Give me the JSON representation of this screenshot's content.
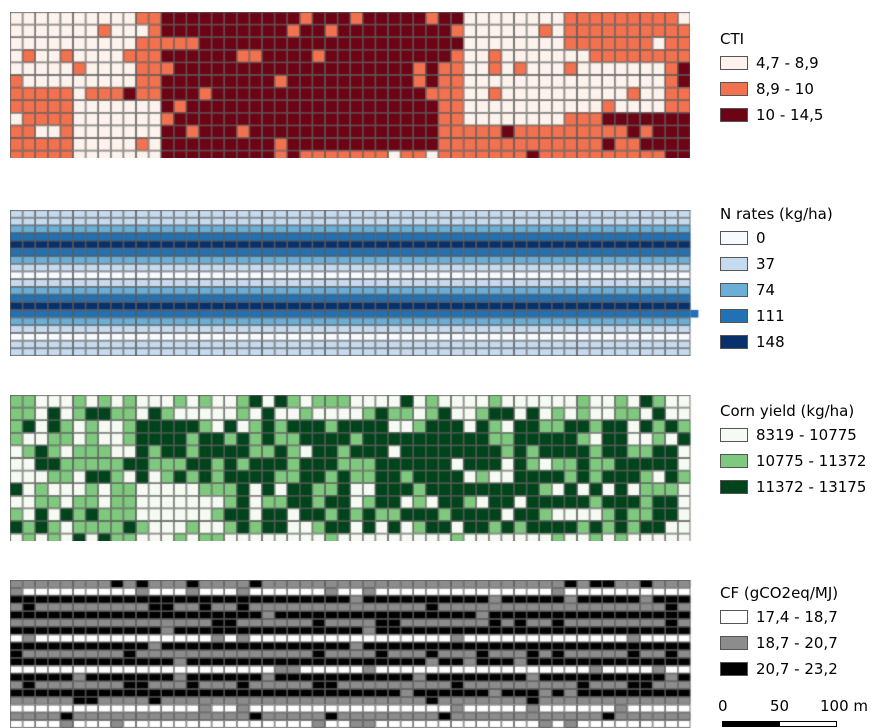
{
  "panels": [
    {
      "id": "cti",
      "legend_title": "CTI",
      "classes": [
        {
          "label": "4,7 - 8,9",
          "color": "#fdf2ec"
        },
        {
          "label": "8,9 - 10",
          "color": "#f2714f"
        },
        {
          "label": "10 - 14,5",
          "color": "#6c0415"
        }
      ],
      "pattern": "cti",
      "grid": {
        "cols": 54,
        "rows": 12
      }
    },
    {
      "id": "nrates",
      "legend_title": "N rates (kg/ha)",
      "classes": [
        {
          "label": "0",
          "color": "#f7fbff"
        },
        {
          "label": "37",
          "color": "#c6dbef"
        },
        {
          "label": "74",
          "color": "#6baed6"
        },
        {
          "label": "111",
          "color": "#2171b5"
        },
        {
          "label": "148",
          "color": "#08306b"
        }
      ],
      "row_classes": [
        1,
        1,
        2,
        3,
        4,
        3,
        2,
        1,
        0,
        1,
        2,
        3,
        4,
        3,
        2,
        1,
        0,
        1,
        1
      ],
      "pattern": "rows",
      "grid": {
        "cols": 54,
        "rows": 12
      }
    },
    {
      "id": "yield",
      "legend_title": "Corn yield (kg/ha)",
      "classes": [
        {
          "label": "8319 - 10775",
          "color": "#f5fbf2"
        },
        {
          "label": "10775 - 11372",
          "color": "#7fc97f"
        },
        {
          "label": "11372 - 13175",
          "color": "#00441b"
        }
      ],
      "pattern": "yield",
      "grid": {
        "cols": 54,
        "rows": 12
      }
    },
    {
      "id": "cf",
      "legend_title": "CF (gCO2eq/MJ)",
      "classes": [
        {
          "label": "17,4 - 18,7",
          "color": "#ffffff"
        },
        {
          "label": "18,7 - 20,7",
          "color": "#8c8c8c"
        },
        {
          "label": "20,7 - 23,2",
          "color": "#000000"
        }
      ],
      "row_classes": [
        1,
        0,
        2,
        1,
        2,
        1,
        2,
        0,
        2,
        1,
        2,
        0,
        2,
        1,
        2,
        1,
        0,
        1,
        0
      ],
      "pattern": "cf",
      "grid": {
        "cols": 54,
        "rows": 12
      }
    }
  ],
  "scalebar": {
    "labels": [
      "0",
      "50",
      "100 m"
    ]
  }
}
